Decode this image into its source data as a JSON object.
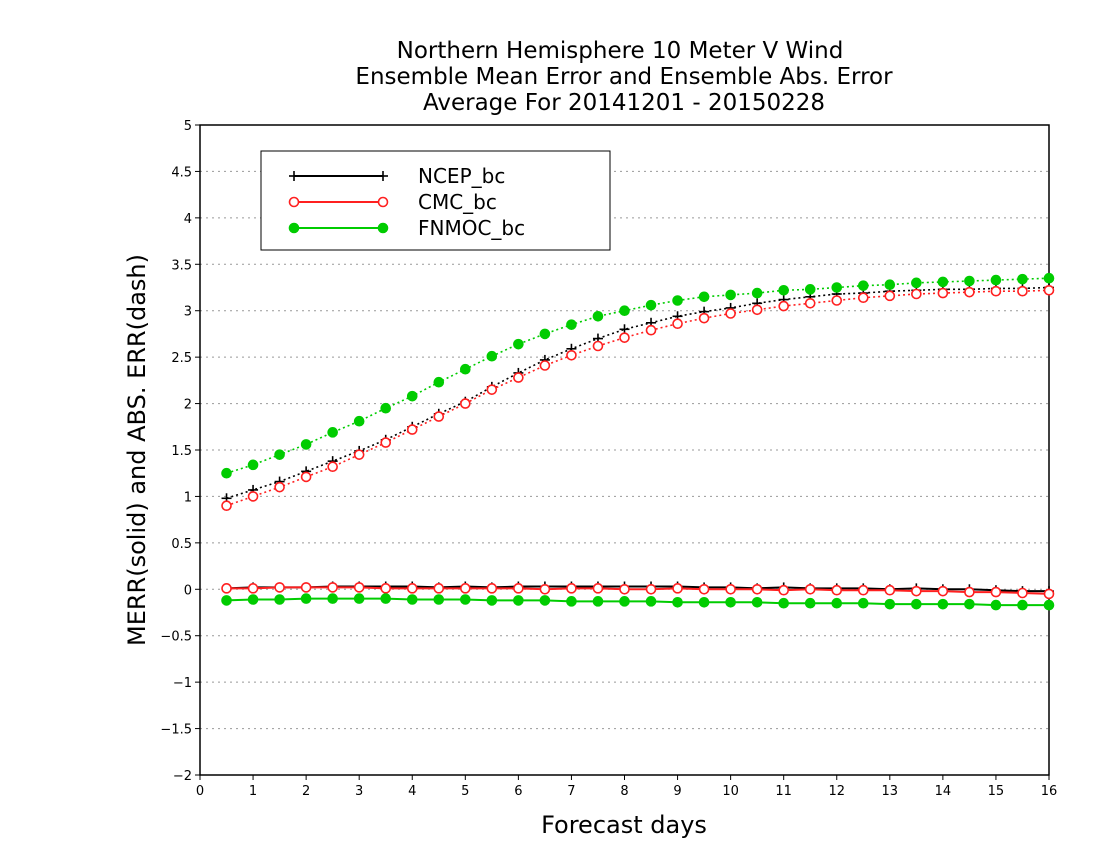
{
  "chart_data": {
    "type": "line",
    "title": [
      "Northern Hemisphere 10 Meter V Wind",
      "Ensemble Mean Error and Ensemble Abs. Error",
      "Average For 20141201 - 20150228"
    ],
    "xlabel": "Forecast days",
    "ylabel": "MERR(solid) and ABS. ERR(dash)",
    "xlim": [
      0,
      16
    ],
    "ylim": [
      -2,
      5
    ],
    "xticks": [
      0,
      1,
      2,
      3,
      4,
      5,
      6,
      7,
      8,
      9,
      10,
      11,
      12,
      13,
      14,
      15,
      16
    ],
    "yticks": [
      -2,
      -1.5,
      -1,
      -0.5,
      0,
      0.5,
      1,
      1.5,
      2,
      2.5,
      3,
      3.5,
      4,
      4.5,
      5
    ],
    "grid": "horizontal dotted",
    "legend_position": "top-left",
    "x": [
      0.5,
      1,
      1.5,
      2,
      2.5,
      3,
      3.5,
      4,
      4.5,
      5,
      5.5,
      6,
      6.5,
      7,
      7.5,
      8,
      8.5,
      9,
      9.5,
      10,
      10.5,
      11,
      11.5,
      12,
      12.5,
      13,
      13.5,
      14,
      14.5,
      15,
      15.5,
      16
    ],
    "series": [
      {
        "name": "NCEP_bc",
        "color": "#000000",
        "marker": "plus",
        "merr": [
          0.01,
          0.02,
          0.02,
          0.02,
          0.03,
          0.03,
          0.03,
          0.03,
          0.02,
          0.03,
          0.02,
          0.03,
          0.03,
          0.03,
          0.03,
          0.03,
          0.03,
          0.03,
          0.02,
          0.02,
          0.01,
          0.02,
          0.01,
          0.01,
          0.01,
          0.0,
          0.01,
          0.0,
          0.0,
          -0.01,
          -0.02,
          -0.02
        ],
        "abs_err": [
          0.98,
          1.07,
          1.16,
          1.27,
          1.38,
          1.49,
          1.61,
          1.75,
          1.89,
          2.02,
          2.18,
          2.33,
          2.47,
          2.59,
          2.7,
          2.8,
          2.87,
          2.94,
          2.99,
          3.03,
          3.08,
          3.12,
          3.15,
          3.18,
          3.19,
          3.21,
          3.22,
          3.23,
          3.23,
          3.24,
          3.24,
          3.25
        ]
      },
      {
        "name": "CMC_bc",
        "color": "#ff2020",
        "marker": "open-circle",
        "merr": [
          0.01,
          0.01,
          0.02,
          0.02,
          0.02,
          0.02,
          0.01,
          0.01,
          0.01,
          0.01,
          0.01,
          0.01,
          0.0,
          0.01,
          0.01,
          0.0,
          0.0,
          0.01,
          0.0,
          0.0,
          0.0,
          -0.01,
          0.0,
          -0.01,
          -0.01,
          -0.01,
          -0.02,
          -0.02,
          -0.03,
          -0.03,
          -0.04,
          -0.05
        ],
        "abs_err": [
          0.9,
          1.0,
          1.1,
          1.21,
          1.32,
          1.45,
          1.58,
          1.72,
          1.86,
          2.0,
          2.15,
          2.28,
          2.41,
          2.52,
          2.62,
          2.71,
          2.79,
          2.86,
          2.92,
          2.97,
          3.01,
          3.05,
          3.08,
          3.11,
          3.14,
          3.16,
          3.18,
          3.19,
          3.2,
          3.21,
          3.21,
          3.22
        ]
      },
      {
        "name": "FNMOC_bc",
        "color": "#00cc00",
        "marker": "filled-circle",
        "merr": [
          -0.12,
          -0.11,
          -0.11,
          -0.1,
          -0.1,
          -0.1,
          -0.1,
          -0.11,
          -0.11,
          -0.11,
          -0.12,
          -0.12,
          -0.12,
          -0.13,
          -0.13,
          -0.13,
          -0.13,
          -0.14,
          -0.14,
          -0.14,
          -0.14,
          -0.15,
          -0.15,
          -0.15,
          -0.15,
          -0.16,
          -0.16,
          -0.16,
          -0.16,
          -0.17,
          -0.17,
          -0.17
        ],
        "abs_err": [
          1.25,
          1.34,
          1.45,
          1.56,
          1.69,
          1.81,
          1.95,
          2.08,
          2.23,
          2.37,
          2.51,
          2.64,
          2.75,
          2.85,
          2.94,
          3.0,
          3.06,
          3.11,
          3.15,
          3.17,
          3.19,
          3.22,
          3.23,
          3.25,
          3.27,
          3.28,
          3.3,
          3.31,
          3.32,
          3.33,
          3.34,
          3.35
        ]
      }
    ]
  }
}
